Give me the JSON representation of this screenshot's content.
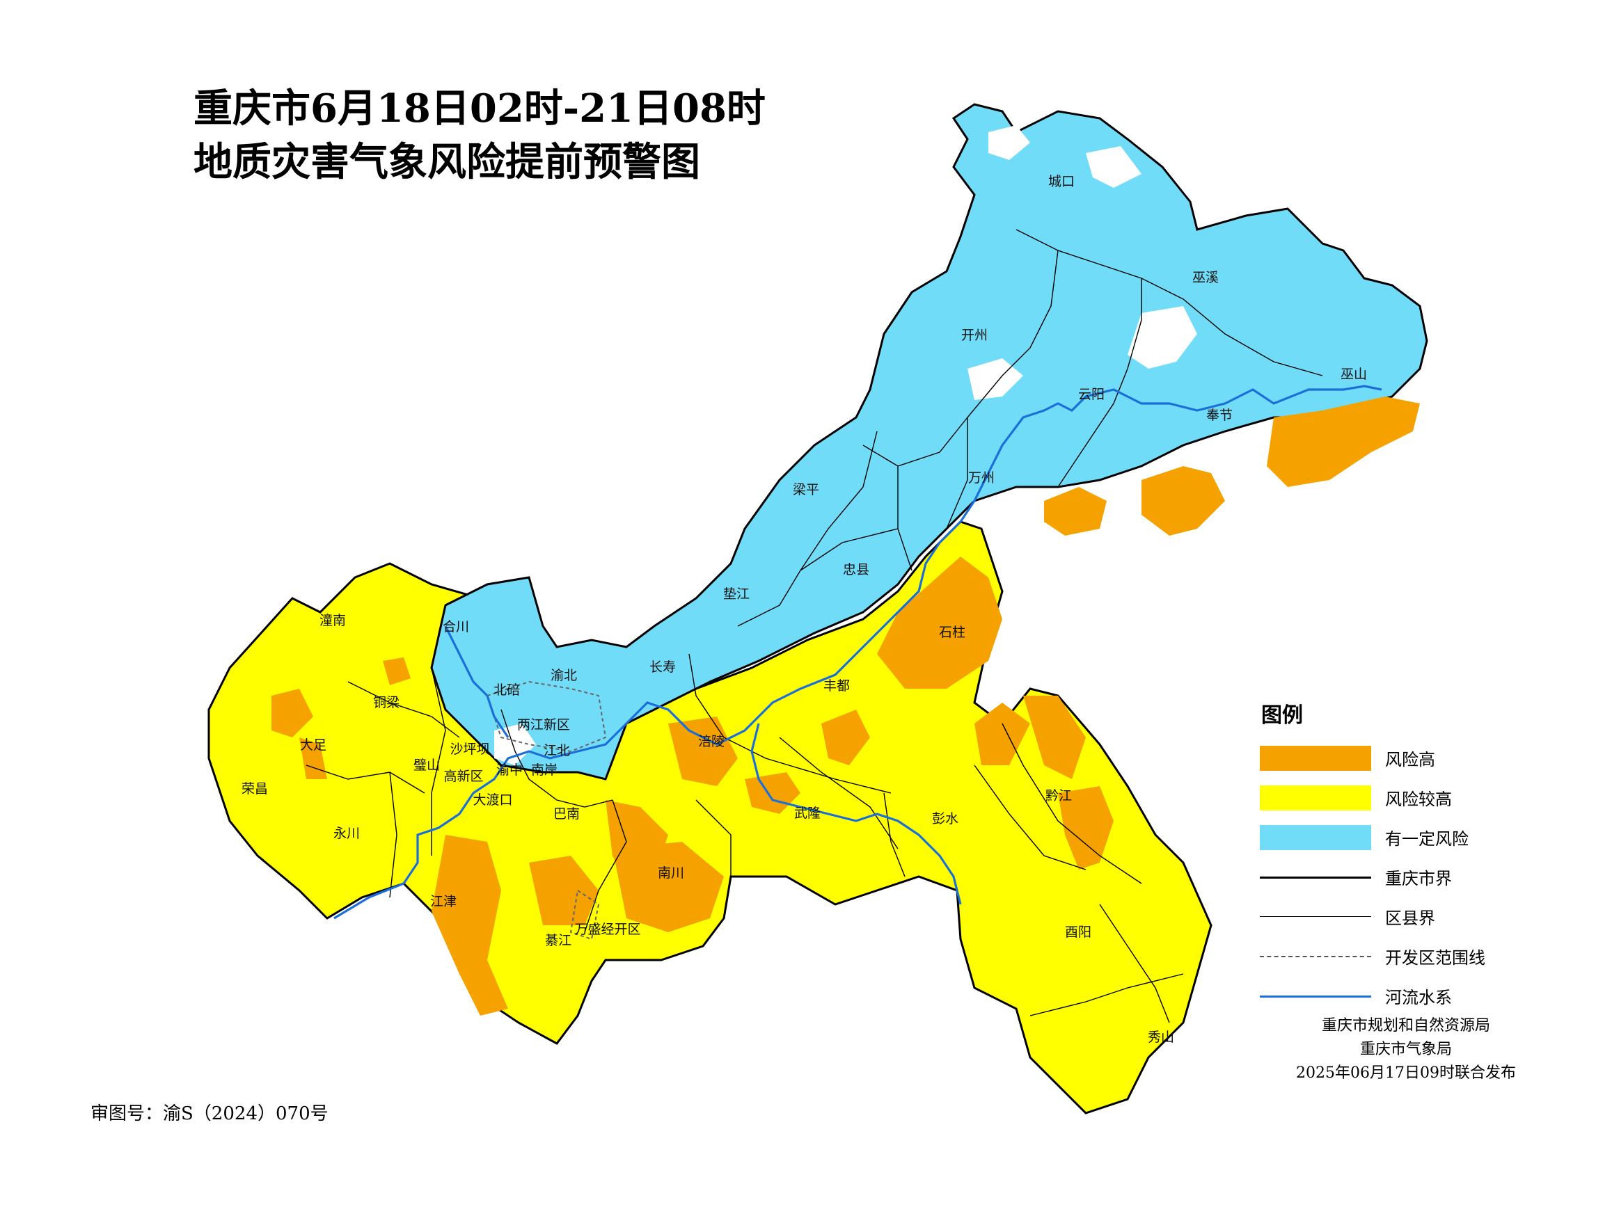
{
  "title": {
    "line1": "重庆市6月18日02时-21日08时",
    "line2": "地质灾害气象风险提前预警图"
  },
  "colors": {
    "high": "#f5a200",
    "higher": "#ffff00",
    "some": "#71dcf8",
    "none": "#ffffff",
    "river": "#1b6fd8"
  },
  "districts": {
    "chengkou": "城口",
    "wuxi": "巫溪",
    "kaizhou": "开州",
    "wushan": "巫山",
    "yunyang": "云阳",
    "fengjie": "奉节",
    "wanzhou": "万州",
    "liangping": "梁平",
    "zhongxian": "忠县",
    "dianjiang": "垫江",
    "shizhu": "石柱",
    "tongnan": "潼南",
    "hechuan": "合川",
    "changshou": "长寿",
    "beibei": "北碚",
    "yubei": "渝北",
    "fengdu": "丰都",
    "tongliang": "铜梁",
    "liangjiang": "两江新区",
    "dazu": "大足",
    "shapingba": "沙坪坝",
    "jiangbei": "江北",
    "fuling": "涪陵",
    "bishan": "璧山",
    "yuzhong": "渝中",
    "nanan": "南岸",
    "gaoxin": "高新区",
    "rongchang": "荣昌",
    "dadukou": "大渡口",
    "qianjiang": "黔江",
    "banan": "巴南",
    "wulong": "武隆",
    "pengshui": "彭水",
    "yongchuan": "永川",
    "nanchuan": "南川",
    "jiangjin": "江津",
    "youyang": "酉阳",
    "qijiang": "綦江",
    "wansheng": "万盛经开区",
    "xiushan": "秀山"
  },
  "legend": {
    "title": "图例",
    "items": [
      {
        "label": "风险高",
        "kind": "fill",
        "color": "#f5a200"
      },
      {
        "label": "风险较高",
        "kind": "fill",
        "color": "#ffff00"
      },
      {
        "label": "有一定风险",
        "kind": "fill",
        "color": "#71dcf8"
      },
      {
        "label": "重庆市界",
        "kind": "line"
      },
      {
        "label": "区县界",
        "kind": "line"
      },
      {
        "label": "开发区范围线",
        "kind": "dashed"
      },
      {
        "label": "河流水系",
        "kind": "river"
      }
    ]
  },
  "issuer": {
    "org1": "重庆市规划和自然资源局",
    "org2": "重庆市气象局",
    "release": "2025年06月17日09时联合发布"
  },
  "approval": "审图号：渝S（2024）070号"
}
